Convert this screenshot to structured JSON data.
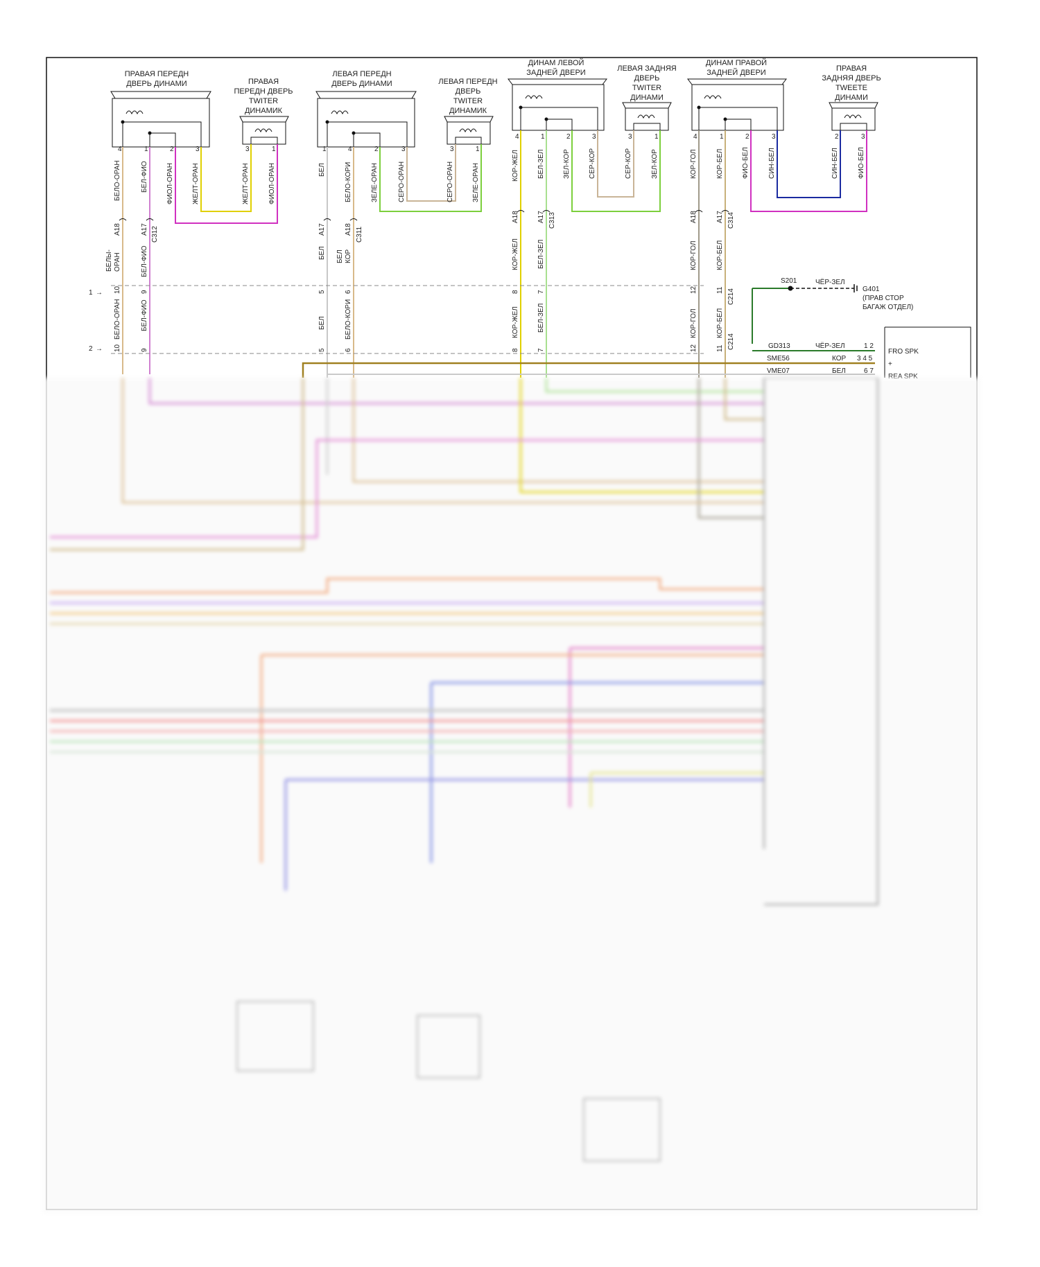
{
  "components": {
    "rf_door": [
      "ПРАВАЯ ПЕРЕДН",
      "ДВЕРЬ ДИНАМИ"
    ],
    "rf_tweeter": [
      "ПРАВАЯ",
      "ПЕРЕДН ДВЕРЬ",
      "TWITER",
      "ДИНАМИК"
    ],
    "lf_door": [
      "ЛЕВАЯ ПЕРЕДН",
      "ДВЕРЬ ДИНАМИ"
    ],
    "lf_tweeter": [
      "ЛЕВАЯ ПЕРЕДН",
      "ДВЕРЬ",
      "TWITER",
      "ДИНАМИК"
    ],
    "lr_door": [
      "ДИНАМ ЛЕВОЙ",
      "ЗАДНЕЙ ДВЕРИ"
    ],
    "lr_tweeter": [
      "ЛЕВАЯ ЗАДНЯЯ",
      "ДВЕРЬ",
      "TWITER",
      "ДИНАМИ"
    ],
    "rr_door": [
      "ДИНАМ ПРАВОЙ",
      "ЗАДНЕЙ ДВЕРИ"
    ],
    "rr_tweeter": [
      "ПРАВАЯ",
      "ЗАДНЯЯ ДВЕРЬ",
      "TWEETE",
      "ДИНАМИ"
    ]
  },
  "wires": {
    "rf1": "БЕЛО-ОРАН",
    "rf2": "БЕЛ-ФИО",
    "rf3": "ФИОЛ-ОРАН",
    "rf4": "ЖЕЛТ-ОРАН",
    "rft1": "ЖЕЛТ-ОРАН",
    "rft2": "ФИОЛ-ОРАН",
    "lf1": "БЕЛ",
    "lf2": "БЕЛО-КОРИ",
    "lf3": "ЗЕЛЕ-ОРАН",
    "lf4": "СЕРО-ОРАН",
    "lft1": "СЕРО-ОРАН",
    "lft2": "ЗЕЛЕ-ОРАН",
    "lr1": "КОР-ЖЕЛ",
    "lr2": "БЕЛ-ЗЕЛ",
    "lr3": "ЗЕЛ-КОР",
    "lr4": "СЕР-КОР",
    "lrt1": "СЕР-КОР",
    "lrt2": "ЗЕЛ-КОР",
    "rr1": "КОР-ГОЛ",
    "rr2": "КОР-БЕЛ",
    "rr3": "ФИО-БЕЛ",
    "rr4": "СИН-БЕЛ",
    "rrt1": "СИН-БЕЛ",
    "rrt2": "ФИО-БЕЛ",
    "mid_rf1a": "БЕЛЫ-",
    "mid_rf1b": "ОРАН",
    "mid_rf2": "БЕЛ-ФИО",
    "mid_lf1": "БЕЛ",
    "mid_lf2a": "БЕЛ",
    "mid_lf2b": "КОР",
    "mid_lr1": "КОР-ЖЕЛ",
    "mid_lr2": "БЕЛ-ЗЕЛ",
    "mid_rr1": "КОР-ГОЛ",
    "mid_rr2": "КОР-БЕЛ",
    "low_rf1": "БЕЛО-ОРАН",
    "low_rf2": "БЕЛ-ФИО",
    "low_lf1": "БЕЛ",
    "low_lf2": "БЕЛО-КОРИ",
    "low_lr1": "КОР-ЖЕЛ",
    "low_lr2": "БЕЛ-ЗЕЛ",
    "low_rr1": "КОР-ГОЛ",
    "low_rr2": "КОР-БЕЛ"
  },
  "connectors": {
    "c312": "C312",
    "c311": "C311",
    "c313": "C313",
    "c314": "C314",
    "c214": "C214",
    "a17": "A17",
    "a18": "A18"
  },
  "markers": {
    "row1": "1",
    "row2": "2",
    "arrow": "→"
  },
  "ground": {
    "splice": "S201",
    "wire": "ЧЁР-ЗЕЛ",
    "point": "G401",
    "desc1": "(ПРАВ СТОР",
    "desc2": "БАГАЖ ОТДЕЛ)"
  },
  "module": {
    "rows": [
      {
        "circuit": "GD313",
        "color": "ЧЁР-ЗЕЛ",
        "pins": "1 2",
        "label": "FRO SPK"
      },
      {
        "circuit": "SME56",
        "color": "КОР",
        "pins": "3 4 5",
        "label": "+"
      },
      {
        "circuit": "VME07",
        "color": "БЕЛ",
        "pins": "6 7",
        "label": "REA SPK"
      }
    ]
  },
  "pins": {
    "rf_door": [
      "4",
      "1",
      "2",
      "3"
    ],
    "rf_tw": [
      "3",
      "1"
    ],
    "lf_door": [
      "1",
      "4",
      "2",
      "3"
    ],
    "lf_tw": [
      "3",
      "1"
    ],
    "lr_door": [
      "4",
      "1",
      "2",
      "3"
    ],
    "lr_tw": [
      "3",
      "1"
    ],
    "rr_door": [
      "4",
      "1",
      "2",
      "3"
    ],
    "rr_tw": [
      "2",
      "3"
    ],
    "row1": [
      "10",
      "9",
      "5",
      "6",
      "8",
      "7",
      "12",
      "11"
    ],
    "row2": [
      "10",
      "9",
      "5",
      "6",
      "8",
      "7",
      "12",
      "11"
    ]
  }
}
